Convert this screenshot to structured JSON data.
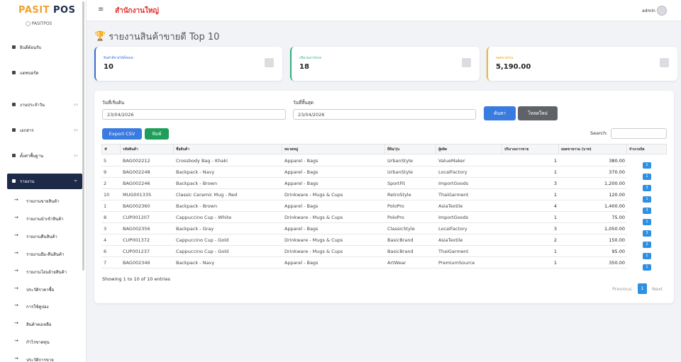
{
  "sidebar": {
    "logo_primary": "PASIT",
    "logo_secondary": "POS",
    "subtitle": "PASITPOS",
    "menu": [
      "ยินดีต้อนรับ",
      "แดชบอร์ด",
      "งานประจำวัน",
      "เอกสาร",
      "ตั้งค่าพื้นฐาน",
      "รายงาน"
    ],
    "submenu": [
      "รายงานขายสินค้า",
      "รายงานนำเข้าสินค้า",
      "รายงานคืนสินค้า",
      "รายงานยืม-คืนสินค้า",
      "รายงานโอนย้ายสินค้า",
      "ประวัติราคาซื้อ",
      "การใช้คูปอง",
      "สินค้าคงเหลือ",
      "กำไรขาดทุน",
      "ประวัติการขาย"
    ]
  },
  "header": {
    "branch": "สำนักงานใหญ่",
    "user": "admin"
  },
  "page": {
    "title": "รายงานสินค้าขายดี Top 10"
  },
  "summary_cards": [
    {
      "label": "สินค้าที่ขายได้ทั้งหมด",
      "value": "10"
    },
    {
      "label": "ปริมาณการขาย",
      "value": "18"
    },
    {
      "label": "ยอดขายรวม",
      "value": "5,190.00"
    }
  ],
  "filters": {
    "start_label": "วันที่เริ่มต้น",
    "start_value": "23/04/2026",
    "end_label": "วันที่สิ้นสุด",
    "end_value": "23/04/2026",
    "search_button": "ค้นหา",
    "reload_button": "โหลดใหม่"
  },
  "toolbar": {
    "export_button": "Export CSV",
    "print_button": "พิมพ์",
    "search_label": "Search:"
  },
  "table": {
    "columns": [
      "#",
      "รหัสสินค้า",
      "ชื่อสินค้า",
      "หมวดหมู่",
      "ยี่ห้อ/รุ่น",
      "ผู้ผลิต",
      "ปริมาณการขาย",
      "ยอดขายรวม (บาท)",
      "จำนวนบิล"
    ],
    "rows": [
      [
        "5",
        "BAG002212",
        "Crossbody Bag - Khaki",
        "Apparel - Bags",
        "UrbanStyle",
        "ValueMaker",
        "1",
        "380.00",
        "1"
      ],
      [
        "9",
        "BAG002248",
        "Backpack - Navy",
        "Apparel - Bags",
        "UrbanStyle",
        "LocalFactory",
        "1",
        "370.00",
        "1"
      ],
      [
        "2",
        "BAG002246",
        "Backpack - Brown",
        "Apparel - Bags",
        "SportFit",
        "ImportGoods",
        "3",
        "1,200.00",
        "3"
      ],
      [
        "10",
        "MUG001335",
        "Classic Ceramic Mug - Red",
        "Drinkware - Mugs & Cups",
        "RetroStyle",
        "ThaiGarment",
        "1",
        "120.00",
        "1"
      ],
      [
        "1",
        "BAG002360",
        "Backpack - Brown",
        "Apparel - Bags",
        "PoloPro",
        "AsiaTextile",
        "4",
        "1,400.00",
        "3"
      ],
      [
        "8",
        "CUP001207",
        "Cappuccino Cup - White",
        "Drinkware - Mugs & Cups",
        "PoloPro",
        "ImportGoods",
        "1",
        "75.00",
        "1"
      ],
      [
        "3",
        "BAG002356",
        "Backpack - Gray",
        "Apparel - Bags",
        "ClassicStyle",
        "LocalFactory",
        "3",
        "1,050.00",
        "3"
      ],
      [
        "4",
        "CUP001372",
        "Cappuccino Cup - Gold",
        "Drinkware - Mugs & Cups",
        "BasicBrand",
        "AsiaTextile",
        "2",
        "150.00",
        "2"
      ],
      [
        "6",
        "CUP001237",
        "Cappuccino Cup - Gold",
        "Drinkware - Mugs & Cups",
        "BasicBrand",
        "ThaiGarment",
        "1",
        "95.00",
        "1"
      ],
      [
        "7",
        "BAG002346",
        "Backpack - Navy",
        "Apparel - Bags",
        "ArtWear",
        "PremiumSource",
        "1",
        "350.00",
        "1"
      ]
    ]
  },
  "footer": {
    "info": "Showing 1 to 10 of 10 entries",
    "previous": "Previous",
    "page": "1",
    "next": "Next"
  }
}
